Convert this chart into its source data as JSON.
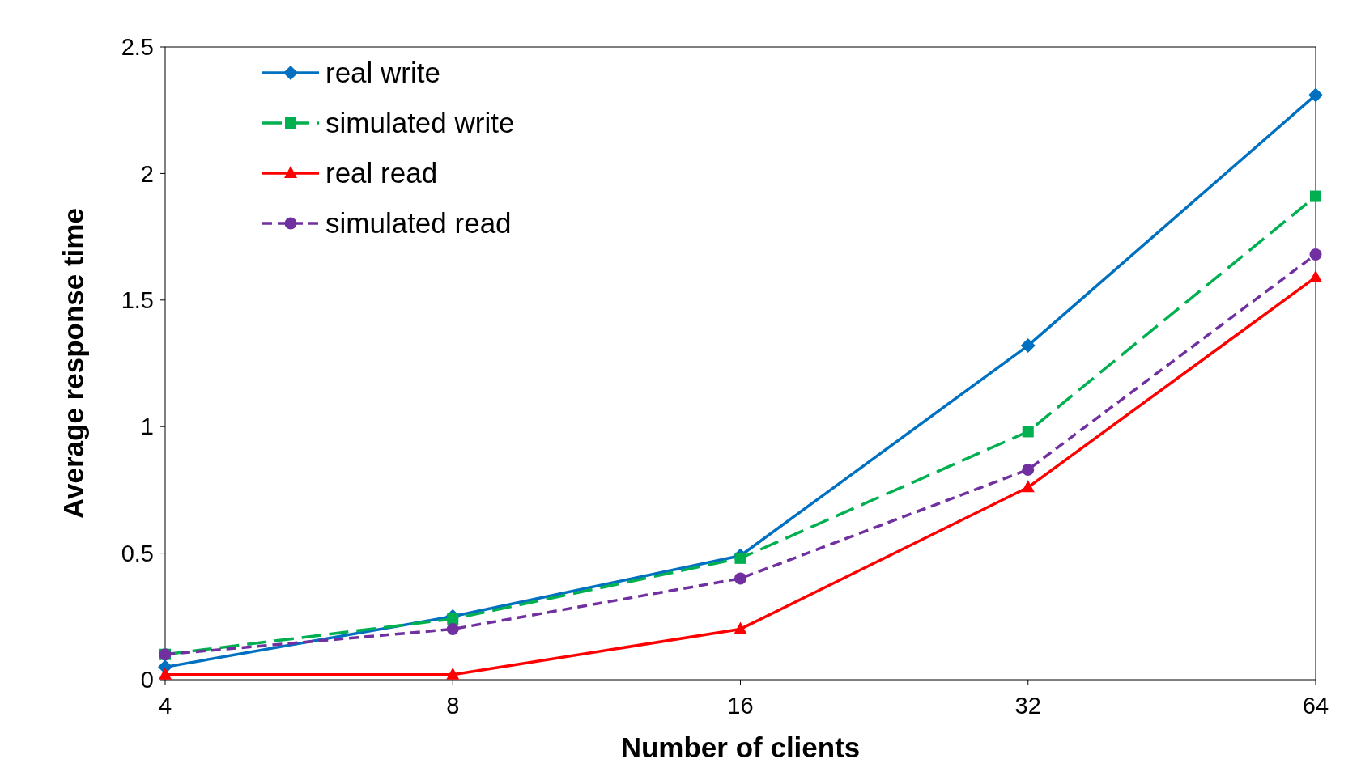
{
  "chart_data": {
    "type": "line",
    "xlabel": "Number of clients",
    "ylabel": "Average response time",
    "categories": [
      "4",
      "8",
      "16",
      "32",
      "64"
    ],
    "ylim": [
      0,
      2.5
    ],
    "yticks": [
      0,
      0.5,
      1,
      1.5,
      2,
      2.5
    ],
    "grid": false,
    "legend": "top left",
    "series": [
      {
        "name": "real write",
        "color": "#0070c0",
        "marker": "diamond",
        "line_style": "solid",
        "values": [
          0.05,
          0.25,
          0.49,
          1.32,
          2.31
        ]
      },
      {
        "name": "simulated write",
        "color": "#00b050",
        "marker": "square",
        "line_style": "dashed",
        "values": [
          0.1,
          0.24,
          0.48,
          0.98,
          1.91
        ]
      },
      {
        "name": "real read",
        "color": "#ff0000",
        "marker": "triangle",
        "line_style": "solid",
        "values": [
          0.02,
          0.02,
          0.2,
          0.76,
          1.59
        ]
      },
      {
        "name": "simulated read",
        "color": "#7030a0",
        "marker": "circle",
        "line_style": "dotted",
        "values": [
          0.1,
          0.2,
          0.4,
          0.83,
          1.68
        ]
      }
    ]
  }
}
